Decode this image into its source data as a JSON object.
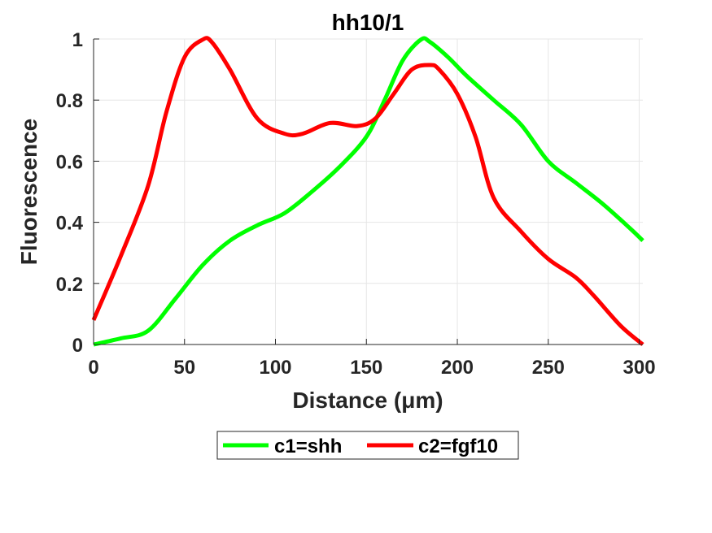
{
  "chart_data": {
    "type": "line",
    "title": "hh10/1",
    "xlabel": "Distance  (μm)",
    "ylabel": "Fluorescence",
    "xlim": [
      0,
      302
    ],
    "ylim": [
      0,
      1
    ],
    "xticks": [
      0,
      50,
      100,
      150,
      200,
      250,
      300
    ],
    "xtick_labels": [
      "0",
      "50",
      "100",
      "150",
      "200",
      "250",
      "300"
    ],
    "yticks": [
      0,
      0.2,
      0.4,
      0.6,
      0.8,
      1
    ],
    "ytick_labels": [
      "0",
      "0.2",
      "0.4",
      "0.6",
      "0.8",
      "1"
    ],
    "grid": true,
    "legend_position": "bottom-center",
    "series": [
      {
        "name": "c1=shh",
        "color": "#00ff00",
        "x": [
          0,
          15,
          30,
          45,
          60,
          75,
          90,
          105,
          120,
          135,
          150,
          160,
          170,
          180,
          185,
          195,
          205,
          220,
          235,
          250,
          265,
          280,
          295,
          302
        ],
        "y": [
          0.0,
          0.02,
          0.045,
          0.15,
          0.26,
          0.34,
          0.39,
          0.43,
          0.5,
          0.58,
          0.68,
          0.8,
          0.93,
          0.998,
          0.99,
          0.94,
          0.88,
          0.8,
          0.72,
          0.6,
          0.53,
          0.46,
          0.38,
          0.34
        ]
      },
      {
        "name": "c2=fgf10",
        "color": "#ff0000",
        "x": [
          0,
          15,
          30,
          40,
          50,
          60,
          65,
          75,
          90,
          105,
          115,
          130,
          145,
          155,
          165,
          175,
          185,
          190,
          200,
          210,
          220,
          235,
          250,
          265,
          275,
          290,
          302
        ],
        "y": [
          0.08,
          0.29,
          0.52,
          0.76,
          0.94,
          0.998,
          0.99,
          0.9,
          0.74,
          0.69,
          0.69,
          0.725,
          0.715,
          0.74,
          0.82,
          0.9,
          0.915,
          0.9,
          0.82,
          0.68,
          0.48,
          0.37,
          0.28,
          0.22,
          0.16,
          0.06,
          0.0
        ]
      }
    ]
  }
}
